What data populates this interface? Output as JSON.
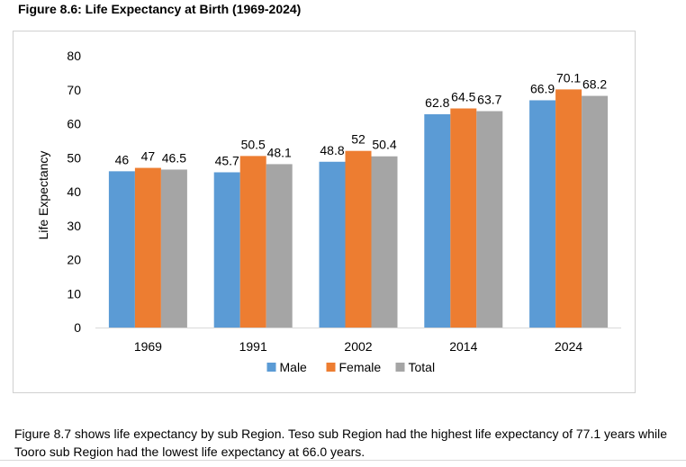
{
  "figure_title": "Figure 8.6: Life Expectancy at Birth (1969-2024)",
  "caption": "Figure 8.7 shows life expectancy by sub Region. Teso sub Region had the highest life expectancy of 77.1 years while Tooro sub Region had the lowest life expectancy at 66.0 years.",
  "chart_data": {
    "type": "bar",
    "title": "",
    "xlabel": "",
    "ylabel": "Life Expectancy",
    "ylim": [
      0,
      80
    ],
    "yticks": [
      0,
      10,
      20,
      30,
      40,
      50,
      60,
      70,
      80
    ],
    "categories": [
      "1969",
      "1991",
      "2002",
      "2014",
      "2024"
    ],
    "series": [
      {
        "name": "Male",
        "color": "#5b9bd5",
        "values": [
          46,
          45.7,
          48.8,
          62.8,
          66.9
        ]
      },
      {
        "name": "Female",
        "color": "#ed7d31",
        "values": [
          47,
          50.5,
          52,
          64.5,
          70.1
        ]
      },
      {
        "name": "Total",
        "color": "#a5a5a5",
        "values": [
          46.5,
          48.1,
          50.4,
          63.7,
          68.2
        ]
      }
    ],
    "data_labels": [
      [
        "46",
        "45.7",
        "48.8",
        "62.8",
        "66.9"
      ],
      [
        "47",
        "50.5",
        "52",
        "64.5",
        "70.1"
      ],
      [
        "46.5",
        "48.1",
        "50.4",
        "63.7",
        "68.2"
      ]
    ],
    "grid": false,
    "legend_position": "bottom"
  }
}
